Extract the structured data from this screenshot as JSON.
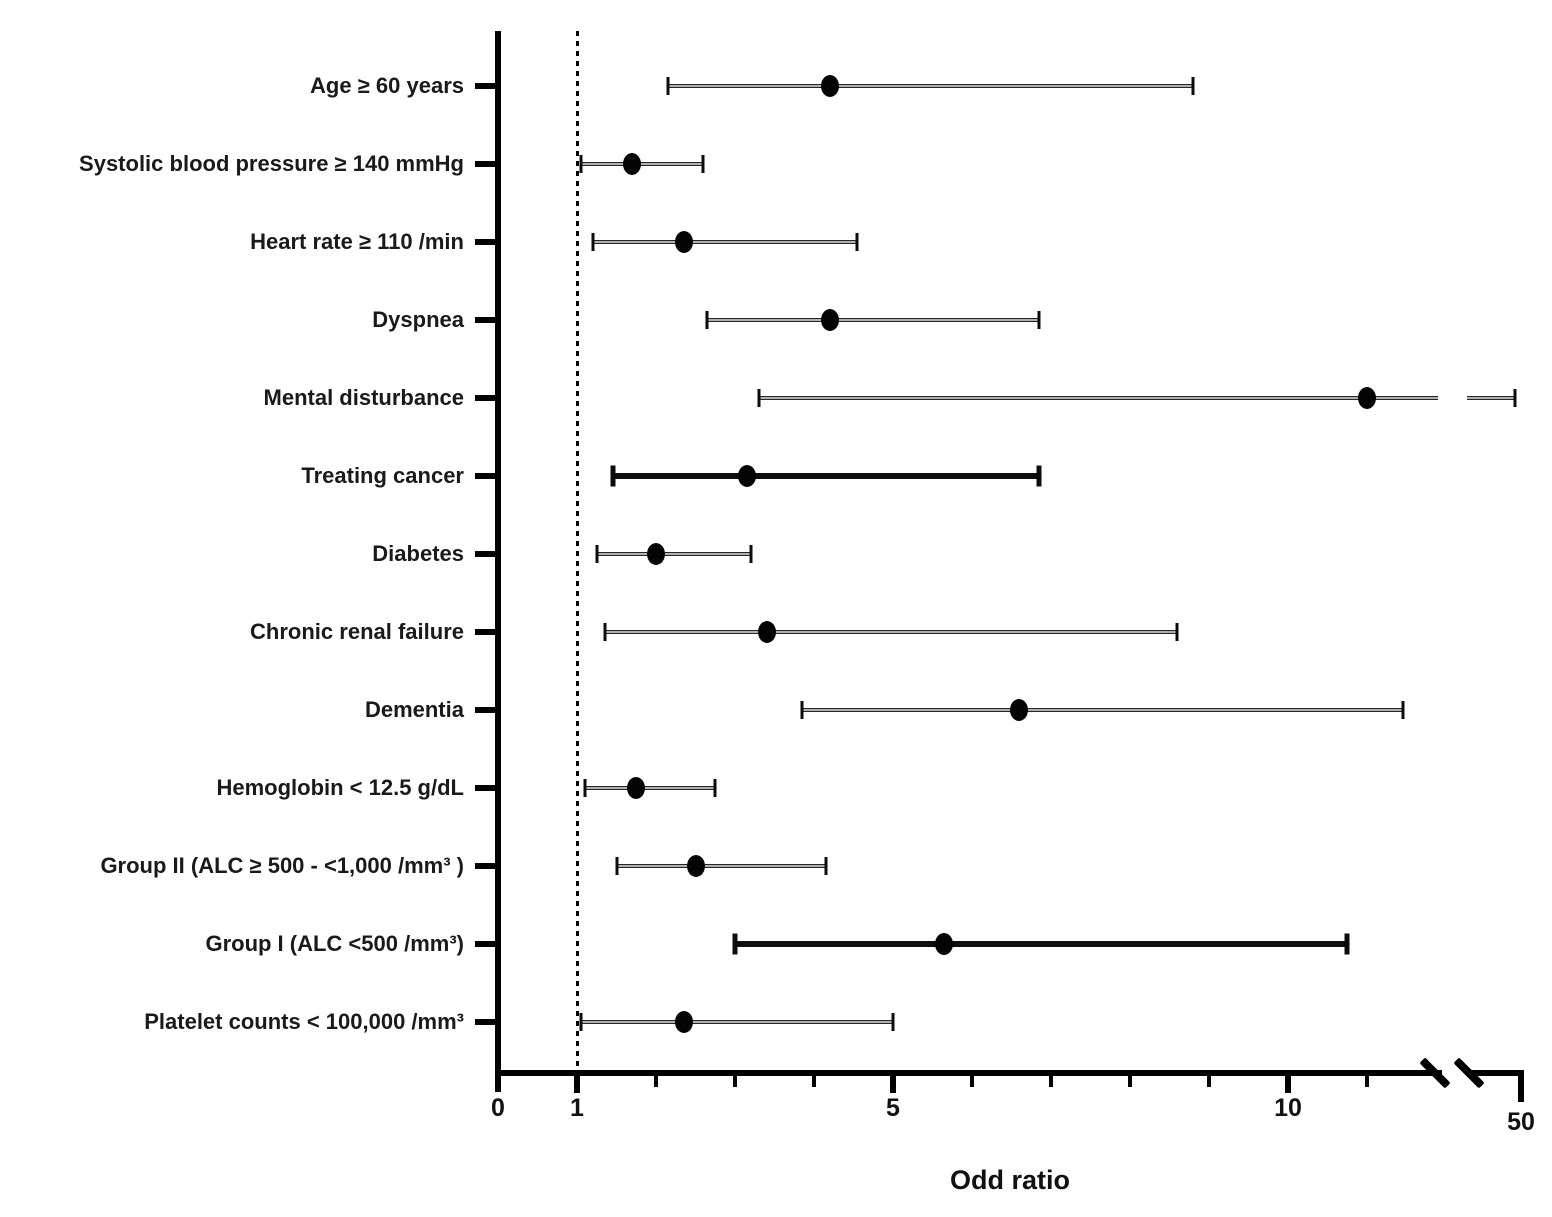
{
  "chart_data": {
    "type": "scatter",
    "subtype": "forest-plot",
    "title": "",
    "xlabel": "Odd ratio",
    "ylabel": "",
    "x_axis": {
      "scale": "linear-with-break",
      "major_ticks": [
        0,
        1,
        5,
        10,
        50
      ],
      "minor_ticks": [
        2,
        3,
        4,
        6,
        7,
        8,
        9,
        11
      ],
      "axis_break_after": 11.8,
      "reference_line_x": 1,
      "grid": false
    },
    "legend": null,
    "rows": [
      {
        "label": "Age ≥ 60 years",
        "or": 4.2,
        "ci_low": 2.15,
        "ci_high": 8.8,
        "emphasis": false,
        "ci_crosses_break": false
      },
      {
        "label": "Systolic blood pressure ≥ 140 mmHg",
        "or": 1.7,
        "ci_low": 1.05,
        "ci_high": 2.6,
        "emphasis": false,
        "ci_crosses_break": false
      },
      {
        "label": "Heart rate ≥ 110 /min",
        "or": 2.35,
        "ci_low": 1.2,
        "ci_high": 4.55,
        "emphasis": false,
        "ci_crosses_break": false
      },
      {
        "label": "Dyspnea",
        "or": 4.2,
        "ci_low": 2.65,
        "ci_high": 6.85,
        "emphasis": false,
        "ci_crosses_break": false
      },
      {
        "label": "Mental disturbance",
        "or": 11.0,
        "ci_low": 3.3,
        "ci_high": 49.0,
        "emphasis": false,
        "ci_crosses_break": true
      },
      {
        "label": "Treating cancer",
        "or": 3.15,
        "ci_low": 1.45,
        "ci_high": 6.85,
        "emphasis": true,
        "ci_crosses_break": false
      },
      {
        "label": "Diabetes",
        "or": 2.0,
        "ci_low": 1.25,
        "ci_high": 3.2,
        "emphasis": false,
        "ci_crosses_break": false
      },
      {
        "label": "Chronic renal failure",
        "or": 3.4,
        "ci_low": 1.35,
        "ci_high": 8.6,
        "emphasis": false,
        "ci_crosses_break": false
      },
      {
        "label": "Dementia",
        "or": 6.6,
        "ci_low": 3.85,
        "ci_high": 11.45,
        "emphasis": false,
        "ci_crosses_break": false
      },
      {
        "label": "Hemoglobin < 12.5 g/dL",
        "or": 1.75,
        "ci_low": 1.1,
        "ci_high": 2.75,
        "emphasis": false,
        "ci_crosses_break": false
      },
      {
        "label": "Group II (ALC ≥ 500 - <1,000 /mm³ )",
        "or": 2.5,
        "ci_low": 1.5,
        "ci_high": 4.15,
        "emphasis": false,
        "ci_crosses_break": false
      },
      {
        "label": "Group I (ALC <500 /mm³)",
        "or": 5.65,
        "ci_low": 3.0,
        "ci_high": 10.75,
        "emphasis": true,
        "ci_crosses_break": false
      },
      {
        "label": "Platelet counts < 100,000 /mm³",
        "or": 2.35,
        "ci_low": 1.05,
        "ci_high": 5.0,
        "emphasis": false,
        "ci_crosses_break": false
      }
    ],
    "colors": {
      "marker": "#040404",
      "bar": "#262626",
      "bar_emphasis": "#0d0d0d",
      "axis": "#000000",
      "background": "#ffffff"
    }
  }
}
